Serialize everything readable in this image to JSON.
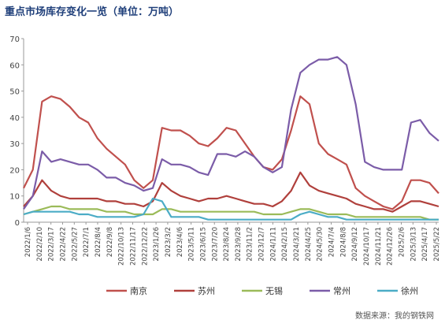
{
  "title": "重点市场库存变化一览（单位：万吨）",
  "source": "数据来源：我的钢铁网",
  "chart_data": {
    "type": "line",
    "title": "重点市场库存变化一览（单位：万吨）",
    "ylim": [
      0,
      70
    ],
    "yticks": [
      0,
      10,
      20,
      30,
      40,
      50,
      60,
      70
    ],
    "x_ticks": [
      "2022/1/6",
      "2022/2/10",
      "2022/3/17",
      "2022/4/22",
      "2022/5/27",
      "2022/7/1",
      "2022/8/4",
      "2022/9/8",
      "2022/10/13",
      "2022/11/17",
      "2022/12/22",
      "2023/1/26",
      "2023/3/2",
      "2023/4/6",
      "2023/5/11",
      "2023/6/15",
      "2023/7/20",
      "2023/8/24",
      "2023/9/28",
      "2023/11/2",
      "2023/12/7",
      "2024/1/11",
      "2024/2/15",
      "2024/3/21",
      "2024/4/25",
      "2024/5/30",
      "2024/7/4",
      "2024/8/8",
      "2024/9/12",
      "2024/10/17",
      "2024/11/21",
      "2024/12/26",
      "2025/2/6",
      "2025/3/13",
      "2025/4/17",
      "2025/5/22"
    ],
    "legend_position": "bottom",
    "grid": false,
    "series": [
      {
        "name": "南京",
        "color": "#c0504d",
        "values": [
          [
            0,
            13
          ],
          [
            1,
            20
          ],
          [
            2,
            46
          ],
          [
            3,
            48
          ],
          [
            4,
            47
          ],
          [
            5,
            44
          ],
          [
            6,
            40
          ],
          [
            7,
            38
          ],
          [
            8,
            32
          ],
          [
            9,
            28
          ],
          [
            10,
            25
          ],
          [
            11,
            22
          ],
          [
            12,
            16
          ],
          [
            13,
            13
          ],
          [
            14,
            16
          ],
          [
            15,
            36
          ],
          [
            16,
            35
          ],
          [
            17,
            35
          ],
          [
            18,
            33
          ],
          [
            19,
            30
          ],
          [
            20,
            29
          ],
          [
            21,
            32
          ],
          [
            22,
            36
          ],
          [
            23,
            35
          ],
          [
            24,
            30
          ],
          [
            25,
            25
          ],
          [
            26,
            21
          ],
          [
            27,
            20
          ],
          [
            28,
            24
          ],
          [
            29,
            35
          ],
          [
            30,
            48
          ],
          [
            31,
            45
          ],
          [
            32,
            30
          ],
          [
            33,
            26
          ],
          [
            34,
            24
          ],
          [
            35,
            22
          ],
          [
            36,
            13
          ],
          [
            37,
            10
          ],
          [
            38,
            8
          ],
          [
            39,
            6
          ],
          [
            40,
            5
          ],
          [
            41,
            8
          ],
          [
            42,
            16
          ],
          [
            43,
            16
          ],
          [
            44,
            15
          ],
          [
            45,
            11
          ]
        ]
      },
      {
        "name": "苏州",
        "color": "#b0403c",
        "values": [
          [
            0,
            6
          ],
          [
            1,
            10
          ],
          [
            2,
            16
          ],
          [
            3,
            12
          ],
          [
            4,
            10
          ],
          [
            5,
            9
          ],
          [
            6,
            9
          ],
          [
            7,
            9
          ],
          [
            8,
            9
          ],
          [
            9,
            8
          ],
          [
            10,
            8
          ],
          [
            11,
            7
          ],
          [
            12,
            7
          ],
          [
            13,
            6
          ],
          [
            14,
            8
          ],
          [
            15,
            15
          ],
          [
            16,
            12
          ],
          [
            17,
            10
          ],
          [
            18,
            9
          ],
          [
            19,
            8
          ],
          [
            20,
            9
          ],
          [
            21,
            9
          ],
          [
            22,
            10
          ],
          [
            23,
            9
          ],
          [
            24,
            8
          ],
          [
            25,
            7
          ],
          [
            26,
            7
          ],
          [
            27,
            6
          ],
          [
            28,
            8
          ],
          [
            29,
            12
          ],
          [
            30,
            19
          ],
          [
            31,
            14
          ],
          [
            32,
            12
          ],
          [
            33,
            11
          ],
          [
            34,
            10
          ],
          [
            35,
            9
          ],
          [
            36,
            7
          ],
          [
            37,
            6
          ],
          [
            38,
            5
          ],
          [
            39,
            5
          ],
          [
            40,
            4
          ],
          [
            41,
            6
          ],
          [
            42,
            8
          ],
          [
            43,
            8
          ],
          [
            44,
            7
          ],
          [
            45,
            6
          ]
        ]
      },
      {
        "name": "无锡",
        "color": "#9bbb59",
        "values": [
          [
            0,
            3
          ],
          [
            1,
            4
          ],
          [
            2,
            5
          ],
          [
            3,
            6
          ],
          [
            4,
            6
          ],
          [
            5,
            5
          ],
          [
            6,
            5
          ],
          [
            7,
            5
          ],
          [
            8,
            5
          ],
          [
            9,
            4
          ],
          [
            10,
            4
          ],
          [
            11,
            4
          ],
          [
            12,
            3
          ],
          [
            13,
            3
          ],
          [
            14,
            3
          ],
          [
            15,
            5
          ],
          [
            16,
            5
          ],
          [
            17,
            4
          ],
          [
            18,
            4
          ],
          [
            19,
            4
          ],
          [
            20,
            4
          ],
          [
            21,
            4
          ],
          [
            22,
            4
          ],
          [
            23,
            4
          ],
          [
            24,
            4
          ],
          [
            25,
            4
          ],
          [
            26,
            3
          ],
          [
            27,
            3
          ],
          [
            28,
            3
          ],
          [
            29,
            4
          ],
          [
            30,
            5
          ],
          [
            31,
            5
          ],
          [
            32,
            4
          ],
          [
            33,
            3
          ],
          [
            34,
            3
          ],
          [
            35,
            3
          ],
          [
            36,
            2
          ],
          [
            37,
            2
          ],
          [
            38,
            2
          ],
          [
            39,
            2
          ],
          [
            40,
            2
          ],
          [
            41,
            2
          ],
          [
            42,
            2
          ],
          [
            43,
            2
          ],
          [
            44,
            1
          ],
          [
            45,
            1
          ]
        ]
      },
      {
        "name": "常州",
        "color": "#7b5ca8",
        "values": [
          [
            0,
            5
          ],
          [
            1,
            10
          ],
          [
            2,
            27
          ],
          [
            3,
            23
          ],
          [
            4,
            24
          ],
          [
            5,
            23
          ],
          [
            6,
            22
          ],
          [
            7,
            22
          ],
          [
            8,
            20
          ],
          [
            9,
            17
          ],
          [
            10,
            17
          ],
          [
            11,
            15
          ],
          [
            12,
            14
          ],
          [
            13,
            12
          ],
          [
            14,
            13
          ],
          [
            15,
            24
          ],
          [
            16,
            22
          ],
          [
            17,
            22
          ],
          [
            18,
            21
          ],
          [
            19,
            19
          ],
          [
            20,
            18
          ],
          [
            21,
            26
          ],
          [
            22,
            26
          ],
          [
            23,
            25
          ],
          [
            24,
            27
          ],
          [
            25,
            25
          ],
          [
            26,
            21
          ],
          [
            27,
            19
          ],
          [
            28,
            21
          ],
          [
            29,
            43
          ],
          [
            30,
            57
          ],
          [
            31,
            60
          ],
          [
            32,
            62
          ],
          [
            33,
            62
          ],
          [
            34,
            63
          ],
          [
            35,
            60
          ],
          [
            36,
            45
          ],
          [
            37,
            23
          ],
          [
            38,
            21
          ],
          [
            39,
            20
          ],
          [
            40,
            20
          ],
          [
            41,
            20
          ],
          [
            42,
            38
          ],
          [
            43,
            39
          ],
          [
            44,
            34
          ],
          [
            45,
            31
          ]
        ]
      },
      {
        "name": "徐州",
        "color": "#4bacc6",
        "values": [
          [
            0,
            3
          ],
          [
            1,
            4
          ],
          [
            2,
            4
          ],
          [
            3,
            4
          ],
          [
            4,
            4
          ],
          [
            5,
            4
          ],
          [
            6,
            3
          ],
          [
            7,
            3
          ],
          [
            8,
            2
          ],
          [
            9,
            2
          ],
          [
            10,
            2
          ],
          [
            11,
            2
          ],
          [
            12,
            2
          ],
          [
            13,
            3
          ],
          [
            14,
            9
          ],
          [
            15,
            8
          ],
          [
            16,
            2
          ],
          [
            17,
            2
          ],
          [
            18,
            2
          ],
          [
            19,
            2
          ],
          [
            20,
            1
          ],
          [
            21,
            1
          ],
          [
            22,
            1
          ],
          [
            23,
            1
          ],
          [
            24,
            1
          ],
          [
            25,
            1
          ],
          [
            26,
            1
          ],
          [
            27,
            1
          ],
          [
            28,
            1
          ],
          [
            29,
            1
          ],
          [
            30,
            3
          ],
          [
            31,
            4
          ],
          [
            32,
            3
          ],
          [
            33,
            2
          ],
          [
            34,
            2
          ],
          [
            35,
            1
          ],
          [
            36,
            1
          ],
          [
            37,
            1
          ],
          [
            38,
            1
          ],
          [
            39,
            1
          ],
          [
            40,
            1
          ],
          [
            41,
            1
          ],
          [
            42,
            1
          ],
          [
            43,
            1
          ],
          [
            44,
            1
          ],
          [
            45,
            1
          ]
        ]
      }
    ]
  }
}
